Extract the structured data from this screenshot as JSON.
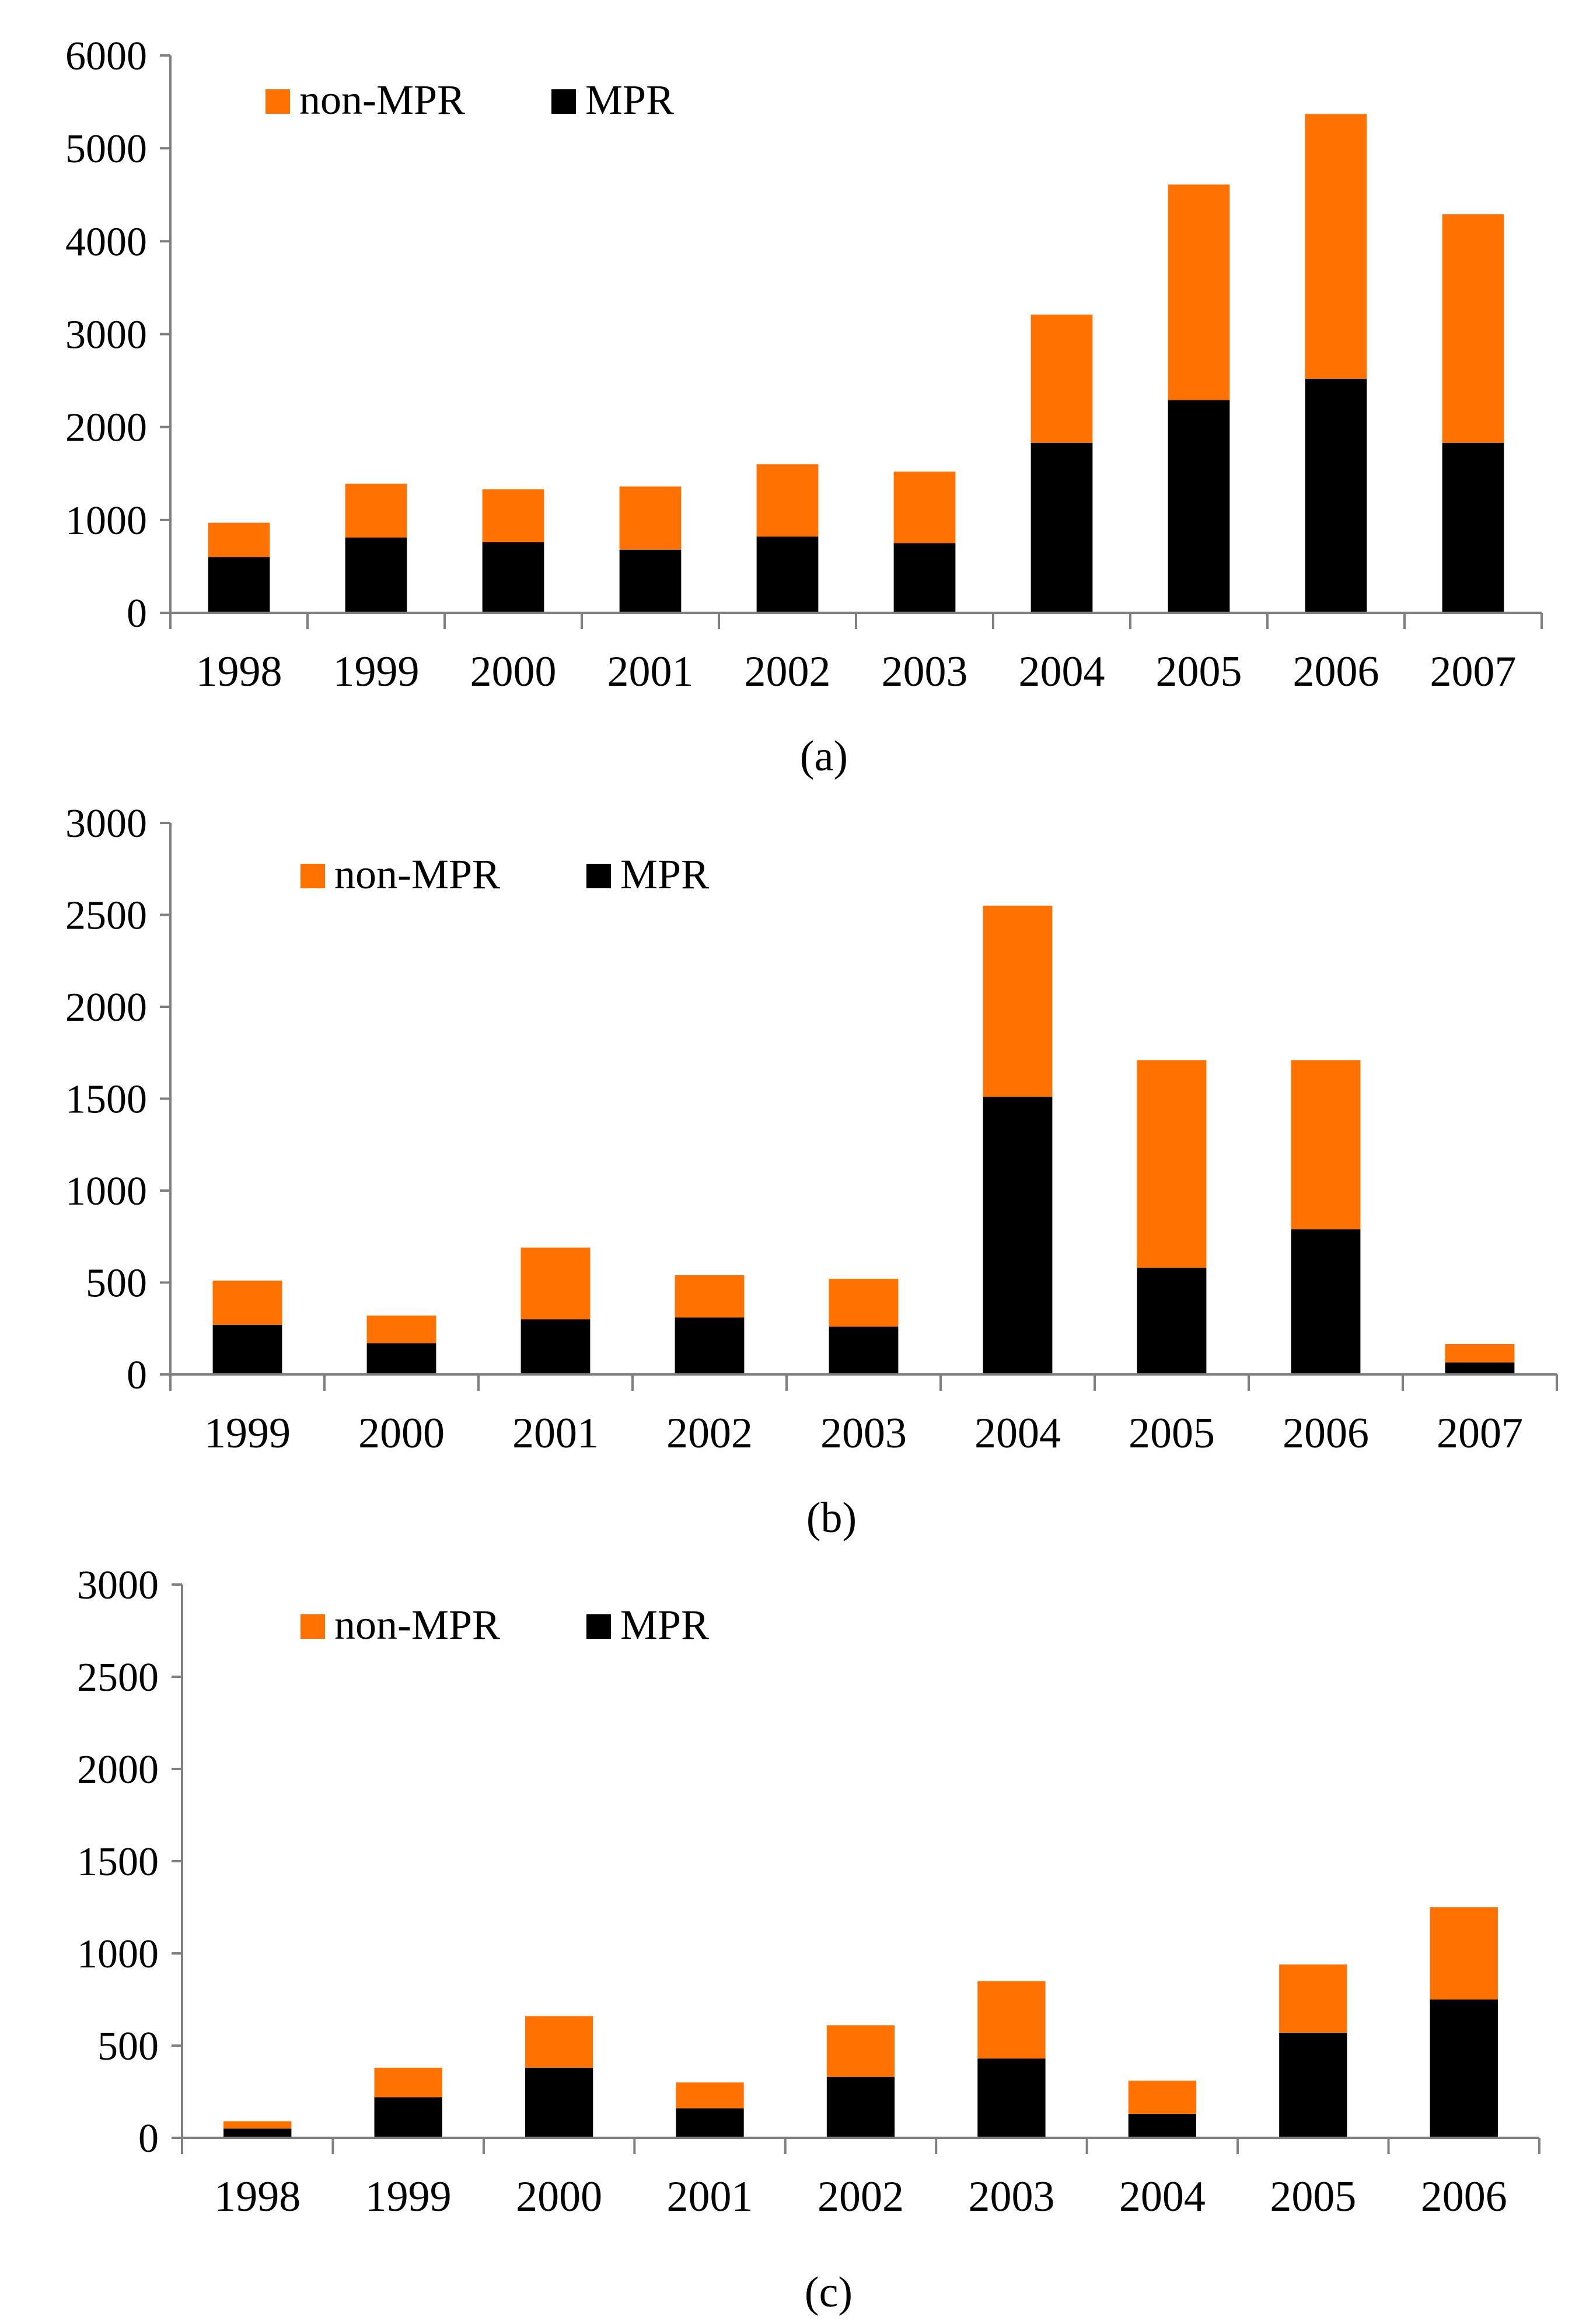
{
  "colors": {
    "non_mpr": "#FF7100",
    "mpr": "#000000",
    "axis": "#7f7f7f"
  },
  "chart_data": [
    {
      "type": "bar",
      "stacked": true,
      "panel_label": "(a)",
      "categories": [
        "1998",
        "1999",
        "2000",
        "2001",
        "2002",
        "2003",
        "2004",
        "2005",
        "2006",
        "2007"
      ],
      "series": [
        {
          "name": "MPR",
          "values": [
            600,
            810,
            760,
            680,
            820,
            750,
            1830,
            2290,
            2520,
            1830
          ]
        },
        {
          "name": "non-MPR",
          "values": [
            370,
            580,
            570,
            680,
            780,
            770,
            1380,
            2320,
            2850,
            2460
          ]
        }
      ],
      "legend": [
        "non-MPR",
        "MPR"
      ],
      "legend_position": "top-left",
      "ylim": [
        0,
        6000
      ],
      "yticks": [
        0,
        1000,
        2000,
        3000,
        4000,
        5000,
        6000
      ],
      "title": "",
      "xlabel": "",
      "ylabel": ""
    },
    {
      "type": "bar",
      "stacked": true,
      "panel_label": "(b)",
      "categories": [
        "1999",
        "2000",
        "2001",
        "2002",
        "2003",
        "2004",
        "2005",
        "2006",
        "2007"
      ],
      "series": [
        {
          "name": "MPR",
          "values": [
            270,
            170,
            300,
            310,
            260,
            1510,
            580,
            790,
            65
          ]
        },
        {
          "name": "non-MPR",
          "values": [
            240,
            150,
            390,
            230,
            260,
            1040,
            1130,
            920,
            100
          ]
        }
      ],
      "legend": [
        "non-MPR",
        "MPR"
      ],
      "legend_position": "top-left",
      "ylim": [
        0,
        3000
      ],
      "yticks": [
        0,
        500,
        1000,
        1500,
        2000,
        2500,
        3000
      ],
      "title": "",
      "xlabel": "",
      "ylabel": ""
    },
    {
      "type": "bar",
      "stacked": true,
      "panel_label": "(c)",
      "categories": [
        "1998",
        "1999",
        "2000",
        "2001",
        "2002",
        "2003",
        "2004",
        "2005",
        "2006"
      ],
      "series": [
        {
          "name": "MPR",
          "values": [
            50,
            220,
            380,
            160,
            330,
            430,
            130,
            570,
            750
          ]
        },
        {
          "name": "non-MPR",
          "values": [
            40,
            160,
            280,
            140,
            280,
            420,
            180,
            370,
            500
          ]
        }
      ],
      "legend": [
        "non-MPR",
        "MPR"
      ],
      "legend_position": "top-left",
      "ylim": [
        0,
        3000
      ],
      "yticks": [
        0,
        500,
        1000,
        1500,
        2000,
        2500,
        3000
      ],
      "title": "",
      "xlabel": "",
      "ylabel": ""
    }
  ]
}
